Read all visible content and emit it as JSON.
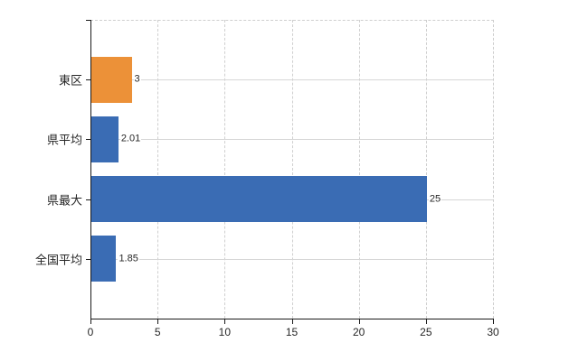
{
  "chart_data": {
    "type": "bar",
    "orientation": "horizontal",
    "title": "",
    "xlabel": "",
    "ylabel": "",
    "categories": [
      "東区",
      "県平均",
      "県最大",
      "全国平均"
    ],
    "values": [
      3,
      2.01,
      25,
      1.85
    ],
    "value_labels": [
      "3",
      "2.01",
      "25",
      "1.85"
    ],
    "bar_colors": [
      "#EC9138",
      "#3A6CB4",
      "#3A6CB4",
      "#3A6CB4"
    ],
    "xlim": [
      0,
      30
    ],
    "xticks": [
      0,
      5,
      10,
      15,
      20,
      25,
      30
    ],
    "xtick_labels": [
      "0",
      "5",
      "10",
      "15",
      "20",
      "25",
      "30"
    ],
    "grid": "on",
    "legend": "none"
  },
  "colors": {
    "bar_default": "#3A6CB4",
    "bar_highlight": "#EC9138",
    "grid_solid": "#D6D6D6",
    "grid_dashed": "#CFCFCF",
    "axis": "#1A1A1A",
    "text": "#262626",
    "background": "#FFFFFF"
  }
}
